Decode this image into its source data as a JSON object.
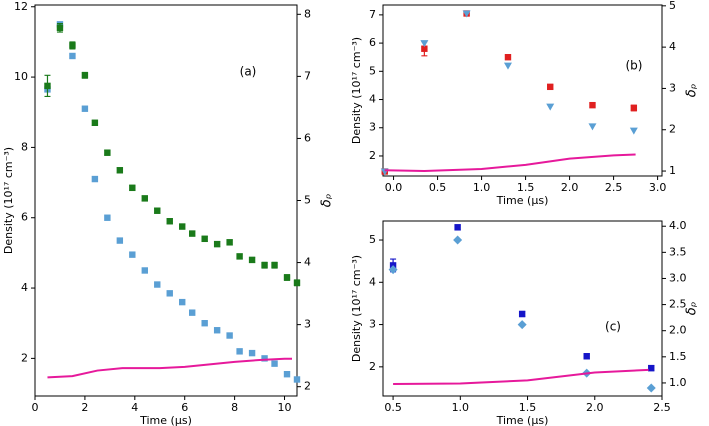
{
  "chart_data": [
    {
      "type": "scatter",
      "annotation": "(a)",
      "xlabel": "Time (μs)",
      "ylabel": "Density (10¹⁷ cm⁻³)",
      "y2label": "δₚ",
      "xlim": [
        0,
        10.5
      ],
      "xticks": [
        0,
        2,
        4,
        6,
        8,
        10
      ],
      "ylim": [
        0.93,
        12.05
      ],
      "yticks": [
        2,
        4,
        6,
        8,
        10,
        12
      ],
      "y2lim": [
        1.85,
        8.15
      ],
      "y2ticks": [
        2,
        3,
        4,
        5,
        6,
        7,
        8
      ],
      "series": [
        {
          "color": "#5a9fd4",
          "marker": "square",
          "axis": "y",
          "x": [
            0.5,
            1.0,
            1.5,
            2.0,
            2.4,
            2.9,
            3.4,
            3.9,
            4.4,
            4.9,
            5.4,
            5.9,
            6.3,
            6.8,
            7.3,
            7.8,
            8.2,
            8.7,
            9.2,
            9.6,
            10.1,
            10.5
          ],
          "values": [
            9.65,
            11.5,
            10.6,
            9.1,
            7.1,
            6.0,
            5.35,
            4.95,
            4.5,
            4.1,
            3.85,
            3.6,
            3.3,
            3.0,
            2.8,
            2.65,
            2.2,
            2.15,
            2.0,
            1.85,
            1.55,
            1.4
          ]
        },
        {
          "color": "#1a7a1a",
          "marker": "square",
          "axis": "y",
          "x": [
            0.5,
            1.0,
            1.5,
            2.0,
            2.4,
            2.9,
            3.4,
            3.9,
            4.4,
            4.9,
            5.4,
            5.9,
            6.3,
            6.8,
            7.3,
            7.8,
            8.2,
            8.7,
            9.2,
            9.6,
            10.1,
            10.5
          ],
          "values": [
            9.75,
            11.4,
            10.9,
            10.05,
            8.7,
            7.85,
            7.35,
            6.85,
            6.55,
            6.2,
            5.9,
            5.75,
            5.55,
            5.4,
            5.25,
            5.3,
            4.9,
            4.8,
            4.65,
            4.65,
            4.3,
            4.15
          ],
          "errors": [
            0.3,
            0.12,
            0.1,
            0.08,
            0.07,
            0.07,
            0.07,
            0.07,
            0.07,
            0.07,
            0.07,
            0.07,
            0.07,
            0.07,
            0.07,
            0.07,
            0.07,
            0.07,
            0.08,
            0.08,
            0.08,
            0.08
          ]
        },
        {
          "color": "#e6199b",
          "marker": "line",
          "axis": "y2",
          "x": [
            0.5,
            1.5,
            2.5,
            3.5,
            5.0,
            6.0,
            7.0,
            8.0,
            9.0,
            10.0,
            10.3
          ],
          "values": [
            2.15,
            2.17,
            2.26,
            2.3,
            2.3,
            2.32,
            2.36,
            2.4,
            2.43,
            2.45,
            2.45
          ]
        }
      ]
    },
    {
      "type": "scatter",
      "annotation": "(b)",
      "xlabel": "Time (μs)",
      "ylabel": "Density (10¹⁷ cm⁻³)",
      "y2label": "δₚ",
      "xlim": [
        -0.12,
        3.05
      ],
      "xticks": [
        {
          "value": 0,
          "label": "0.0"
        },
        0.5,
        {
          "value": 1,
          "label": "1.0"
        },
        1.5,
        {
          "value": 2,
          "label": "2.0"
        },
        2.5,
        {
          "value": 3,
          "label": "3.0"
        }
      ],
      "ylim": [
        1.29,
        7.35
      ],
      "yticks": [
        2,
        3,
        4,
        5,
        6,
        7
      ],
      "y2lim": [
        0.88,
        5.02
      ],
      "y2ticks": [
        1,
        2,
        3,
        4,
        5
      ],
      "series": [
        {
          "color": "#e02020",
          "marker": "square",
          "axis": "y",
          "x": [
            -0.1,
            0.35,
            0.83,
            1.3,
            1.78,
            2.26,
            2.73
          ],
          "values": [
            1.45,
            5.8,
            7.05,
            5.5,
            4.45,
            3.8,
            3.7
          ],
          "errors": [
            0.05,
            0.25,
            0.08,
            0.07,
            0.07,
            0.08,
            0.1
          ]
        },
        {
          "color": "#5a9fd4",
          "marker": "triangle-down",
          "axis": "y",
          "x": [
            -0.1,
            0.35,
            0.83,
            1.3,
            1.78,
            2.26,
            2.73
          ],
          "values": [
            1.45,
            6.0,
            7.05,
            5.2,
            3.75,
            3.05,
            2.9
          ]
        },
        {
          "color": "#e6199b",
          "marker": "line",
          "axis": "y2",
          "x": [
            -0.1,
            0.35,
            1.0,
            1.5,
            2.0,
            2.5,
            2.75
          ],
          "values": [
            1.02,
            1.0,
            1.05,
            1.15,
            1.3,
            1.38,
            1.4
          ]
        }
      ]
    },
    {
      "type": "scatter",
      "annotation": "(c)",
      "xlabel": "Time (μs)",
      "ylabel": "Density (10¹⁷ cm⁻³)",
      "y2label": "δₚ",
      "xlim": [
        0.425,
        2.5
      ],
      "xticks": [
        0.5,
        {
          "value": 1,
          "label": "1.0"
        },
        1.5,
        {
          "value": 2,
          "label": "2.0"
        },
        2.5
      ],
      "ylim": [
        1.31,
        5.45
      ],
      "yticks": [
        2,
        3,
        4,
        5
      ],
      "y2lim": [
        0.75,
        4.1
      ],
      "y2ticks": [
        {
          "value": 1,
          "label": "1.0"
        },
        1.5,
        {
          "value": 2,
          "label": "2.0"
        },
        2.5,
        {
          "value": 3,
          "label": "3.0"
        },
        3.5,
        {
          "value": 4,
          "label": "4.0"
        }
      ],
      "series": [
        {
          "color": "#1515c8",
          "marker": "square",
          "axis": "y",
          "x": [
            0.5,
            0.98,
            1.46,
            1.94,
            2.42
          ],
          "values": [
            4.4,
            5.3,
            3.25,
            2.25,
            1.97
          ],
          "errors": [
            0.15,
            0.06,
            0.06,
            0.06,
            0.06
          ]
        },
        {
          "color": "#5a9fd4",
          "marker": "diamond",
          "axis": "y",
          "x": [
            0.5,
            0.98,
            1.46,
            1.94,
            2.42
          ],
          "values": [
            4.3,
            5.0,
            3.0,
            1.85,
            1.5
          ]
        },
        {
          "color": "#e6199b",
          "marker": "line",
          "axis": "y2",
          "x": [
            0.5,
            1.0,
            1.5,
            2.0,
            2.4
          ],
          "values": [
            0.98,
            0.99,
            1.05,
            1.2,
            1.25
          ]
        }
      ]
    }
  ]
}
